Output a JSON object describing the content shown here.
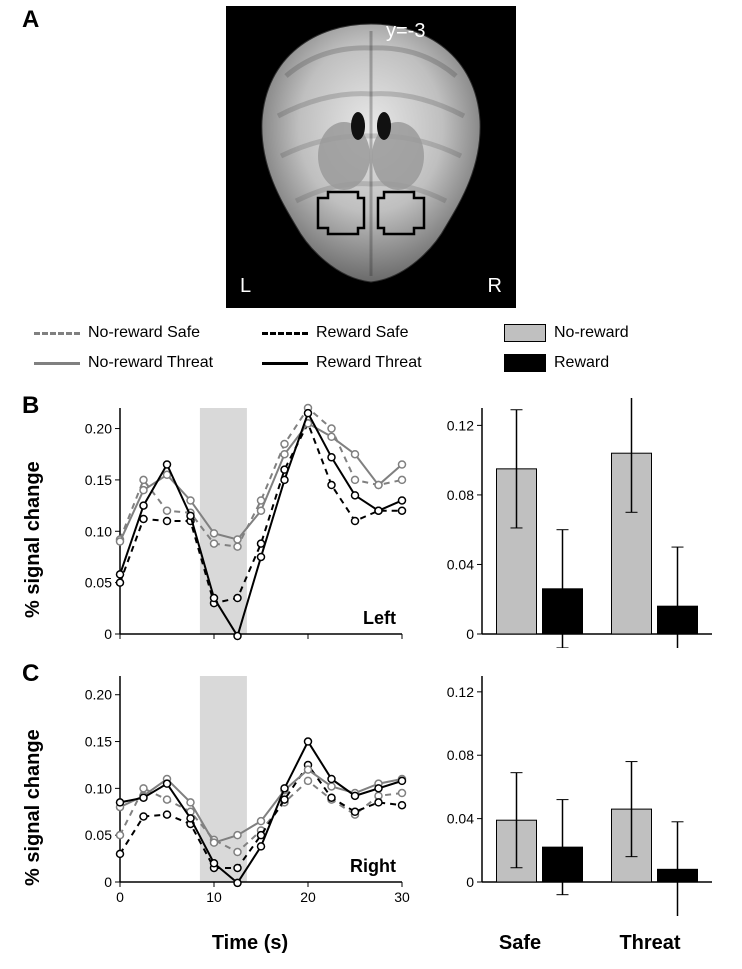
{
  "panel_labels": {
    "A": "A",
    "B": "B",
    "C": "C"
  },
  "brain": {
    "coord_label": "y=-3",
    "left_label": "L",
    "right_label": "R"
  },
  "legend": {
    "no_reward_safe": "No-reward Safe",
    "reward_safe": "Reward Safe",
    "no_reward_threat": "No-reward Threat",
    "reward_threat": "Reward Threat",
    "no_reward": "No-reward",
    "reward": "Reward",
    "colors": {
      "no_reward_line": "#808080",
      "reward_line": "#000000",
      "no_reward_fill": "#c0c0c0",
      "reward_fill": "#000000",
      "shade": "#d9d9d9"
    }
  },
  "axes": {
    "y_label": "% signal change",
    "x_label_time": "Time (s)",
    "x_categories": [
      "Safe",
      "Threat"
    ]
  },
  "panelB": {
    "side_label": "Left",
    "timecourse": {
      "xlim": [
        0,
        30
      ],
      "ylim": [
        0,
        0.22
      ],
      "xticks": [
        0,
        10,
        20,
        30
      ],
      "yticks": [
        0,
        0.05,
        0.1,
        0.15,
        0.2
      ],
      "shade_x": [
        8.5,
        13.5
      ],
      "x": [
        0,
        2.5,
        5,
        7.5,
        10,
        12.5,
        15,
        17.5,
        20,
        22.5,
        25,
        27.5,
        30
      ],
      "series": {
        "no_reward_safe": [
          0.092,
          0.15,
          0.12,
          0.118,
          0.088,
          0.085,
          0.13,
          0.185,
          0.22,
          0.2,
          0.15,
          0.145,
          0.15
        ],
        "reward_safe": [
          0.05,
          0.112,
          0.11,
          0.11,
          0.03,
          0.035,
          0.088,
          0.16,
          0.205,
          0.145,
          0.11,
          0.12,
          0.12
        ],
        "no_reward_threat": [
          0.09,
          0.14,
          0.155,
          0.13,
          0.098,
          0.092,
          0.12,
          0.175,
          0.205,
          0.192,
          0.175,
          0.145,
          0.165
        ],
        "reward_threat": [
          0.058,
          0.125,
          0.165,
          0.115,
          0.035,
          -0.002,
          0.075,
          0.15,
          0.215,
          0.172,
          0.135,
          0.12,
          0.13
        ]
      }
    },
    "bars": {
      "ylim": [
        0,
        0.13
      ],
      "yticks": [
        0,
        0.04,
        0.08,
        0.12
      ],
      "groups": [
        "Safe",
        "Threat"
      ],
      "no_reward": {
        "values": [
          0.095,
          0.104
        ],
        "err": [
          0.034,
          0.034
        ]
      },
      "reward": {
        "values": [
          0.026,
          0.016
        ],
        "err": [
          0.034,
          0.034
        ]
      }
    }
  },
  "panelC": {
    "side_label": "Right",
    "timecourse": {
      "xlim": [
        0,
        30
      ],
      "ylim": [
        0,
        0.22
      ],
      "xticks": [
        0,
        10,
        20,
        30
      ],
      "yticks": [
        0,
        0.05,
        0.1,
        0.15,
        0.2
      ],
      "shade_x": [
        8.5,
        13.5
      ],
      "x": [
        0,
        2.5,
        5,
        7.5,
        10,
        12.5,
        15,
        17.5,
        20,
        22.5,
        25,
        27.5,
        30
      ],
      "series": {
        "no_reward_safe": [
          0.05,
          0.1,
          0.088,
          0.075,
          0.045,
          0.032,
          0.055,
          0.085,
          0.108,
          0.088,
          0.072,
          0.092,
          0.095
        ],
        "reward_safe": [
          0.03,
          0.07,
          0.072,
          0.062,
          0.015,
          0.015,
          0.05,
          0.088,
          0.125,
          0.09,
          0.075,
          0.085,
          0.082
        ],
        "no_reward_threat": [
          0.08,
          0.092,
          0.11,
          0.085,
          0.042,
          0.05,
          0.065,
          0.098,
          0.12,
          0.102,
          0.095,
          0.105,
          0.11
        ],
        "reward_threat": [
          0.085,
          0.09,
          0.105,
          0.068,
          0.02,
          -0.001,
          0.038,
          0.1,
          0.15,
          0.11,
          0.092,
          0.1,
          0.108
        ]
      }
    },
    "bars": {
      "ylim": [
        0,
        0.13
      ],
      "yticks": [
        0,
        0.04,
        0.08,
        0.12
      ],
      "groups": [
        "Safe",
        "Threat"
      ],
      "no_reward": {
        "values": [
          0.039,
          0.046
        ],
        "err": [
          0.03,
          0.03
        ]
      },
      "reward": {
        "values": [
          0.022,
          0.008
        ],
        "err": [
          0.03,
          0.03
        ]
      }
    }
  },
  "style": {
    "font_family": "Arial",
    "panel_label_fontsize": 24,
    "axis_label_fontsize": 20,
    "tick_fontsize": 14,
    "legend_fontsize": 16,
    "line_width": 2,
    "marker_radius": 3.5,
    "background": "#ffffff",
    "axis_color": "#000000"
  }
}
